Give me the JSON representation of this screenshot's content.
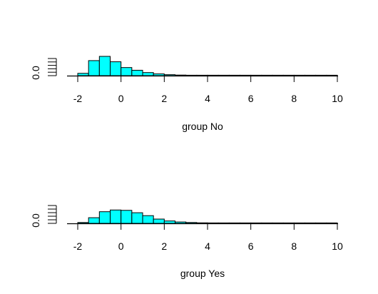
{
  "chart_data": [
    {
      "type": "bar",
      "xlabel": "group No",
      "ylabel": "",
      "xlim": [
        -2.5,
        10
      ],
      "xticks": [
        "-2",
        "0",
        "2",
        "4",
        "6",
        "8",
        "10"
      ],
      "ytick_label": "0.0",
      "ylim": [
        0,
        1
      ],
      "bar_color": "#00ffff",
      "bin_width": 0.5,
      "bins": [
        {
          "x0": -2.0,
          "height": 0.12
        },
        {
          "x0": -1.5,
          "height": 0.78
        },
        {
          "x0": -1.0,
          "height": 1.0
        },
        {
          "x0": -0.5,
          "height": 0.72
        },
        {
          "x0": 0.0,
          "height": 0.42
        },
        {
          "x0": 0.5,
          "height": 0.28
        },
        {
          "x0": 1.0,
          "height": 0.16
        },
        {
          "x0": 1.5,
          "height": 0.09
        },
        {
          "x0": 2.0,
          "height": 0.05
        },
        {
          "x0": 2.5,
          "height": 0.03
        },
        {
          "x0": 3.0,
          "height": 0.015
        },
        {
          "x0": 3.5,
          "height": 0.01
        },
        {
          "x0": 4.0,
          "height": 0.008
        },
        {
          "x0": 4.5,
          "height": 0.006
        },
        {
          "x0": 5.0,
          "height": 0.005
        },
        {
          "x0": 5.5,
          "height": 0.004
        },
        {
          "x0": 6.0,
          "height": 0.003
        },
        {
          "x0": 6.5,
          "height": 0.003
        },
        {
          "x0": 7.0,
          "height": 0.002
        },
        {
          "x0": 7.5,
          "height": 0.002
        },
        {
          "x0": 8.0,
          "height": 0.002
        },
        {
          "x0": 8.5,
          "height": 0.002
        },
        {
          "x0": 9.0,
          "height": 0.002
        },
        {
          "x0": 9.5,
          "height": 0.002
        }
      ]
    },
    {
      "type": "bar",
      "xlabel": "group Yes",
      "ylabel": "",
      "xlim": [
        -2.5,
        10
      ],
      "xticks": [
        "-2",
        "0",
        "2",
        "4",
        "6",
        "8",
        "10"
      ],
      "ytick_label": "0.0",
      "ylim": [
        0,
        1
      ],
      "bar_color": "#00ffff",
      "bin_width": 0.5,
      "bins": [
        {
          "x0": -2.0,
          "height": 0.05
        },
        {
          "x0": -1.5,
          "height": 0.33
        },
        {
          "x0": -1.0,
          "height": 0.68
        },
        {
          "x0": -0.5,
          "height": 0.78
        },
        {
          "x0": 0.0,
          "height": 0.76
        },
        {
          "x0": 0.5,
          "height": 0.62
        },
        {
          "x0": 1.0,
          "height": 0.45
        },
        {
          "x0": 1.5,
          "height": 0.25
        },
        {
          "x0": 2.0,
          "height": 0.14
        },
        {
          "x0": 2.5,
          "height": 0.08
        },
        {
          "x0": 3.0,
          "height": 0.05
        },
        {
          "x0": 3.5,
          "height": 0.03
        },
        {
          "x0": 4.0,
          "height": 0.02
        },
        {
          "x0": 4.5,
          "height": 0.015
        },
        {
          "x0": 5.0,
          "height": 0.01
        },
        {
          "x0": 5.5,
          "height": 0.008
        },
        {
          "x0": 6.0,
          "height": 0.006
        },
        {
          "x0": 6.5,
          "height": 0.005
        },
        {
          "x0": 7.0,
          "height": 0.004
        },
        {
          "x0": 7.5,
          "height": 0.004
        },
        {
          "x0": 8.0,
          "height": 0.003
        },
        {
          "x0": 8.5,
          "height": 0.003
        },
        {
          "x0": 9.0,
          "height": 0.003
        },
        {
          "x0": 9.5,
          "height": 0.003
        }
      ]
    }
  ]
}
